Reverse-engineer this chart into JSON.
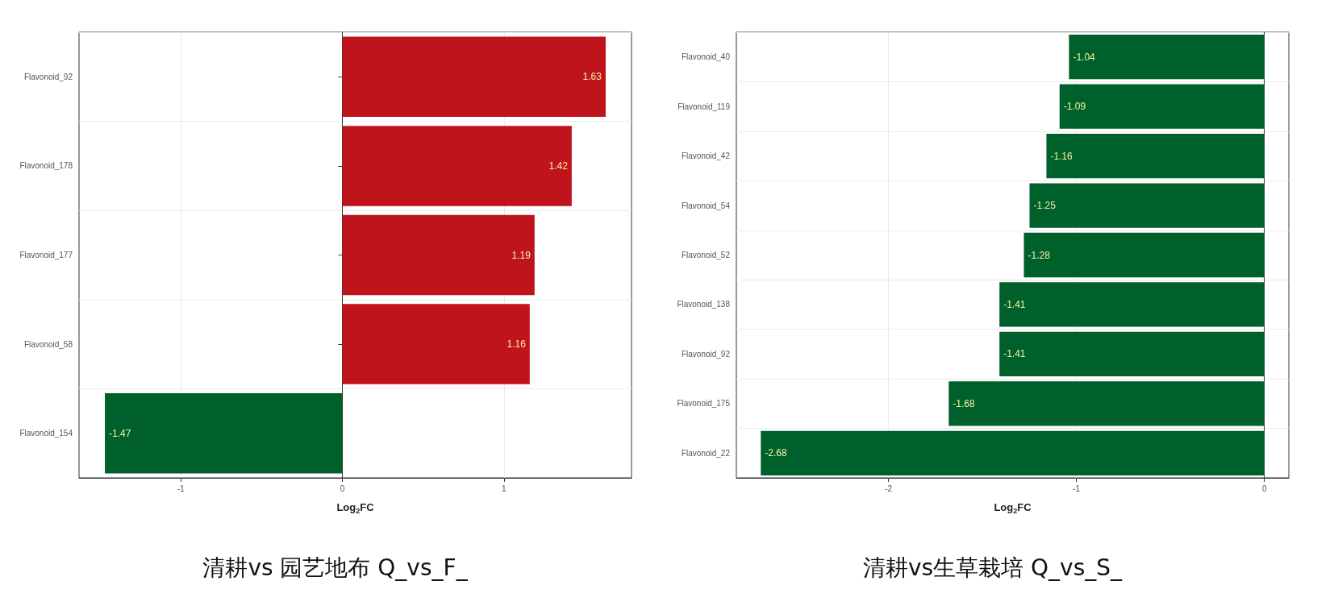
{
  "chart_data": [
    {
      "type": "bar",
      "orientation": "horizontal",
      "title": "清耕vs 园艺地布 Q_vs_F_",
      "xlabel": "Log$_{2}$FC",
      "categories": [
        "Flavonoid_92",
        "Flavonoid_178",
        "Flavonoid_177",
        "Flavonoid_58",
        "Flavonoid_154"
      ],
      "values": [
        1.63,
        1.42,
        1.19,
        1.16,
        -1.47
      ],
      "colors": [
        "#c0141c",
        "#c0141c",
        "#c0141c",
        "#c0141c",
        "#00602c"
      ],
      "xlim": [
        -1.63,
        1.79
      ],
      "xticks": [
        -1,
        0,
        1
      ],
      "grid": true,
      "data_labels": true
    },
    {
      "type": "bar",
      "orientation": "horizontal",
      "title": "清耕vs生草栽培 Q_vs_S_",
      "xlabel": "Log$_{2}$FC",
      "categories": [
        "Flavonoid_40",
        "Flavonoid_119",
        "Flavonoid_42",
        "Flavonoid_54",
        "Flavonoid_52",
        "Flavonoid_138",
        "Flavonoid_92",
        "Flavonoid_175",
        "Flavonoid_22"
      ],
      "values": [
        -1.04,
        -1.09,
        -1.16,
        -1.25,
        -1.28,
        -1.41,
        -1.41,
        -1.68,
        -2.68
      ],
      "colors": [
        "#00602c",
        "#00602c",
        "#00602c",
        "#00602c",
        "#00602c",
        "#00602c",
        "#00602c",
        "#00602c",
        "#00602c"
      ],
      "xlim": [
        -2.81,
        0.13
      ],
      "xticks": [
        -2,
        -1,
        0
      ],
      "grid": true,
      "data_labels": true
    }
  ]
}
